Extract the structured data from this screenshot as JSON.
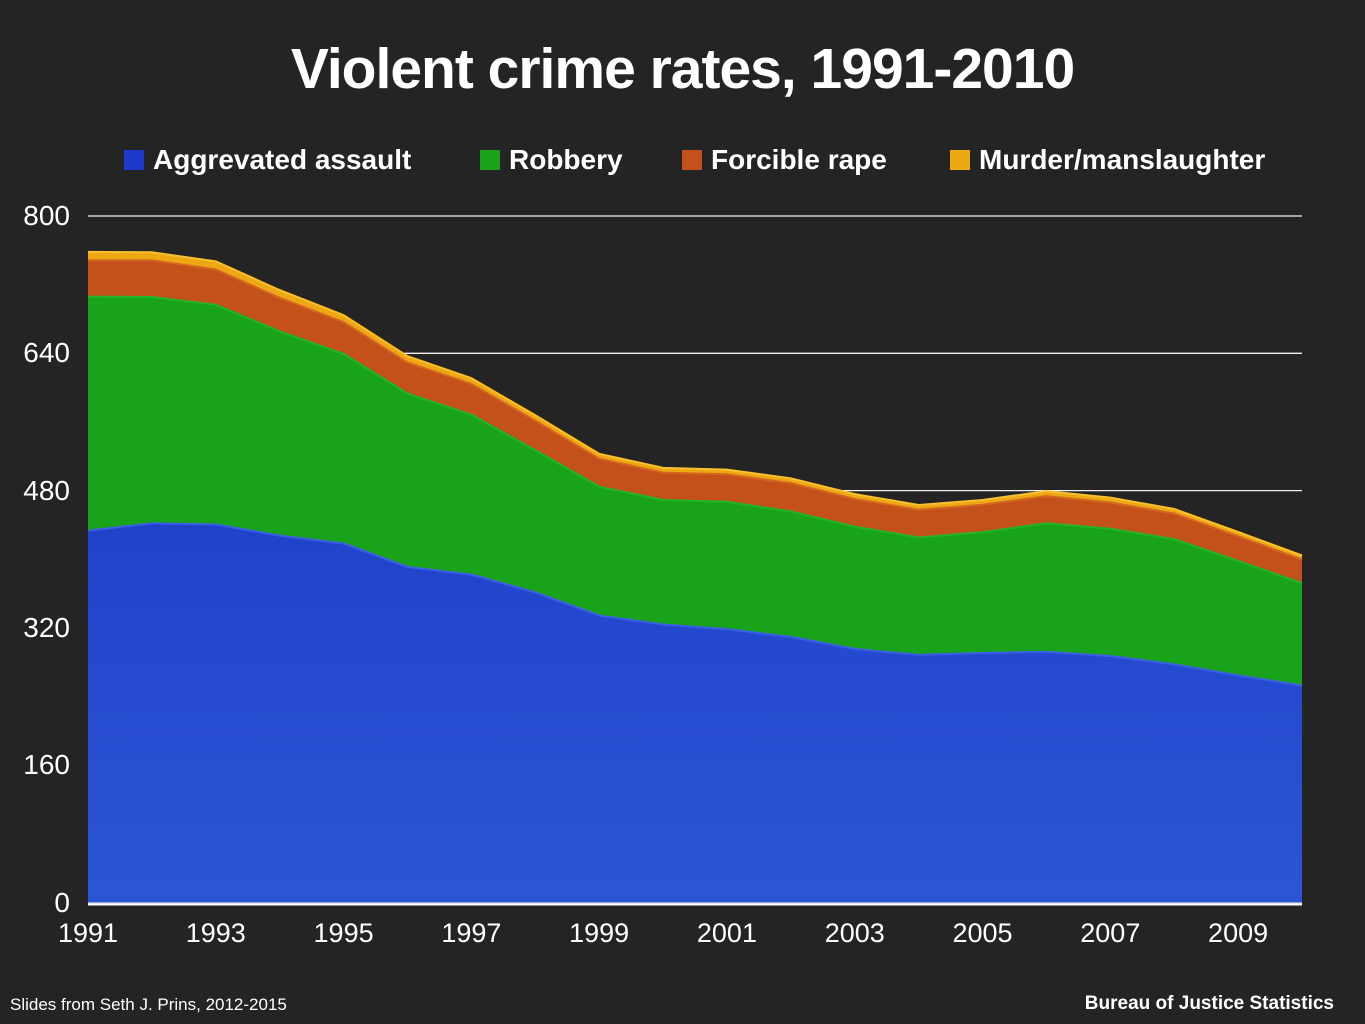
{
  "title": "Violent crime rates, 1991-2010",
  "legend": {
    "items": [
      {
        "label": "Aggrevated assault",
        "color": "#1c3acc"
      },
      {
        "label": "Robbery",
        "color": "#18a31a"
      },
      {
        "label": "Forcible rape",
        "color": "#c4511a"
      },
      {
        "label": "Murder/manslaughter",
        "color": "#eca712"
      }
    ]
  },
  "footer": {
    "left": "Slides from Seth J. Prins, 2012-2015",
    "right": "Bureau of Justice Statistics"
  },
  "chart_data": {
    "type": "area",
    "stacked": true,
    "title": "Violent crime rates, 1991-2010",
    "xlabel": "",
    "ylabel": "",
    "x": [
      1991,
      1992,
      1993,
      1994,
      1995,
      1996,
      1997,
      1998,
      1999,
      2000,
      2001,
      2002,
      2003,
      2004,
      2005,
      2006,
      2007,
      2008,
      2009,
      2010
    ],
    "xticks": [
      1991,
      1993,
      1995,
      1997,
      1999,
      2001,
      2003,
      2005,
      2007,
      2009
    ],
    "yticks": [
      0,
      160,
      320,
      480,
      640,
      800
    ],
    "ylim": [
      0,
      800
    ],
    "grid": "horizontal",
    "legend_position": "top",
    "background_color": "#242424",
    "gridline_color": "#f2f2f2",
    "axis_line_color": "#ffffff",
    "series": [
      {
        "name": "Aggrevated assault",
        "color": "#1733c2",
        "color_bottom": "#2c55d6",
        "edge_color": "#3a5fe6",
        "values": [
          433.4,
          441.9,
          440.5,
          427.6,
          418.3,
          391.0,
          382.1,
          361.4,
          334.3,
          324.0,
          318.6,
          309.5,
          295.4,
          288.6,
          290.8,
          292.0,
          287.2,
          277.5,
          264.7,
          252.8
        ]
      },
      {
        "name": "Robbery",
        "color": "#18a31a",
        "edge_color": "#22b524",
        "values": [
          272.7,
          263.7,
          256.0,
          237.8,
          220.9,
          201.9,
          186.2,
          165.5,
          150.1,
          145.0,
          148.5,
          146.1,
          142.5,
          136.7,
          140.8,
          150.0,
          148.3,
          145.9,
          133.1,
          119.3
        ]
      },
      {
        "name": "Forcible rape",
        "color": "#c4511a",
        "edge_color": "#d2661f",
        "values": [
          42.3,
          42.8,
          41.1,
          39.3,
          37.1,
          36.3,
          35.9,
          34.5,
          32.8,
          32.0,
          31.8,
          33.1,
          32.3,
          32.4,
          31.8,
          31.6,
          30.6,
          29.8,
          29.1,
          27.5
        ]
      },
      {
        "name": "Murder/manslaughter",
        "color": "#eca712",
        "edge_color": "#f8c030",
        "values": [
          9.8,
          9.3,
          9.5,
          9.0,
          8.2,
          7.4,
          6.8,
          6.3,
          5.7,
          5.5,
          5.6,
          5.6,
          5.7,
          5.5,
          5.6,
          5.8,
          5.7,
          5.4,
          5.0,
          4.8
        ]
      }
    ]
  }
}
